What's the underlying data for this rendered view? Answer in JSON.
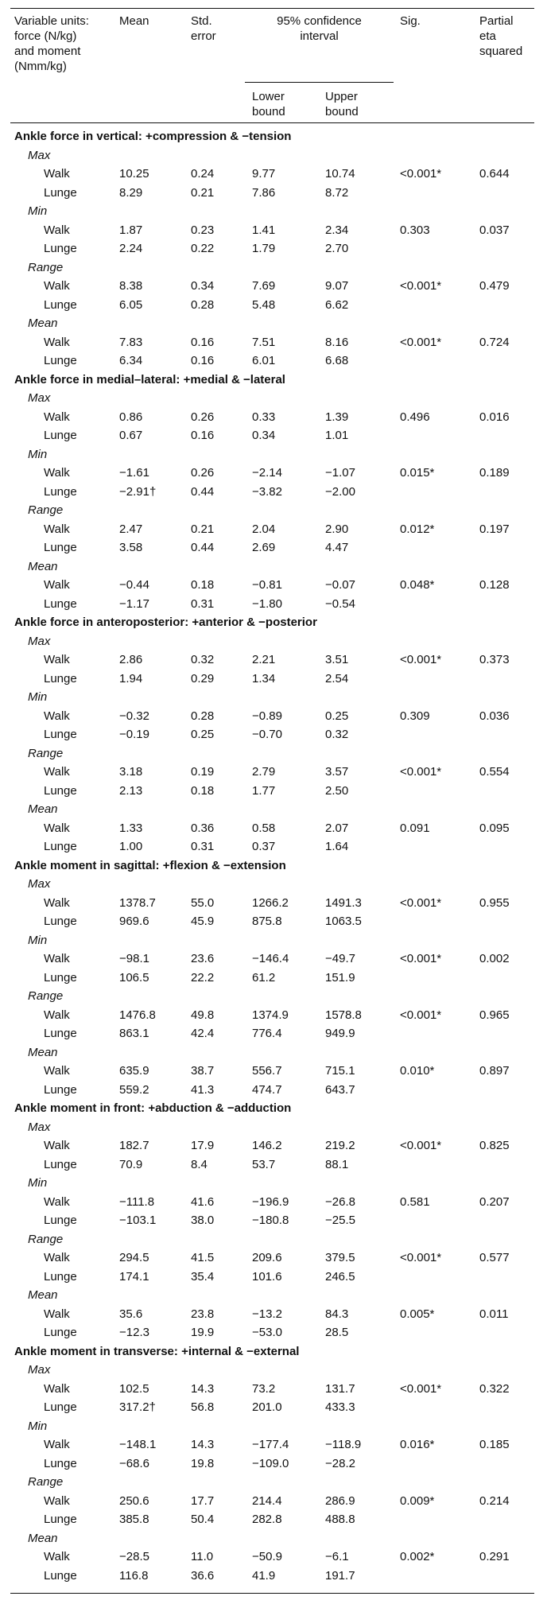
{
  "header": {
    "variable": [
      "Variable units:",
      "force (N/kg)",
      "and moment",
      "(Nmm/kg)"
    ],
    "mean": "Mean",
    "std_error": [
      "Std.",
      "error"
    ],
    "ci": [
      "95% confidence",
      "interval"
    ],
    "lower": [
      "Lower",
      "bound"
    ],
    "upper": [
      "Upper",
      "bound"
    ],
    "sig": "Sig.",
    "eta": [
      "Partial",
      "eta",
      "squared"
    ]
  },
  "rows": [
    {
      "type": "section",
      "label": "Ankle force in vertical: +compression & −tension"
    },
    {
      "type": "stat",
      "label": "Max"
    },
    {
      "type": "data",
      "label": "Walk",
      "mean": "10.25",
      "se": "0.24",
      "lb": "9.77",
      "ub": "10.74",
      "sig": "<0.001*",
      "eta": "0.644"
    },
    {
      "type": "data",
      "label": "Lunge",
      "mean": "8.29",
      "se": "0.21",
      "lb": "7.86",
      "ub": "8.72",
      "sig": "",
      "eta": ""
    },
    {
      "type": "stat",
      "label": "Min"
    },
    {
      "type": "data",
      "label": "Walk",
      "mean": "1.87",
      "se": "0.23",
      "lb": "1.41",
      "ub": "2.34",
      "sig": "0.303",
      "eta": "0.037"
    },
    {
      "type": "data",
      "label": "Lunge",
      "mean": "2.24",
      "se": "0.22",
      "lb": "1.79",
      "ub": "2.70",
      "sig": "",
      "eta": ""
    },
    {
      "type": "stat",
      "label": "Range"
    },
    {
      "type": "data",
      "label": "Walk",
      "mean": "8.38",
      "se": "0.34",
      "lb": "7.69",
      "ub": "9.07",
      "sig": "<0.001*",
      "eta": "0.479"
    },
    {
      "type": "data",
      "label": "Lunge",
      "mean": "6.05",
      "se": "0.28",
      "lb": "5.48",
      "ub": "6.62",
      "sig": "",
      "eta": ""
    },
    {
      "type": "stat",
      "label": "Mean"
    },
    {
      "type": "data",
      "label": "Walk",
      "mean": "7.83",
      "se": "0.16",
      "lb": "7.51",
      "ub": "8.16",
      "sig": "<0.001*",
      "eta": "0.724"
    },
    {
      "type": "data",
      "label": "Lunge",
      "mean": "6.34",
      "se": "0.16",
      "lb": "6.01",
      "ub": "6.68",
      "sig": "",
      "eta": ""
    },
    {
      "type": "section",
      "label": "Ankle force in medial–lateral: +medial & −lateral"
    },
    {
      "type": "stat",
      "label": "Max"
    },
    {
      "type": "data",
      "label": "Walk",
      "mean": "0.86",
      "se": "0.26",
      "lb": "0.33",
      "ub": "1.39",
      "sig": "0.496",
      "eta": "0.016"
    },
    {
      "type": "data",
      "label": "Lunge",
      "mean": "0.67",
      "se": "0.16",
      "lb": "0.34",
      "ub": "1.01",
      "sig": "",
      "eta": ""
    },
    {
      "type": "stat",
      "label": "Min"
    },
    {
      "type": "data",
      "label": "Walk",
      "mean": "−1.61",
      "se": "0.26",
      "lb": "−2.14",
      "ub": "−1.07",
      "sig": "0.015*",
      "eta": "0.189"
    },
    {
      "type": "data",
      "label": "Lunge",
      "mean": "−2.91†",
      "se": "0.44",
      "lb": "−3.82",
      "ub": "−2.00",
      "sig": "",
      "eta": ""
    },
    {
      "type": "stat",
      "label": "Range"
    },
    {
      "type": "data",
      "label": "Walk",
      "mean": "2.47",
      "se": "0.21",
      "lb": "2.04",
      "ub": "2.90",
      "sig": "0.012*",
      "eta": "0.197"
    },
    {
      "type": "data",
      "label": "Lunge",
      "mean": "3.58",
      "se": "0.44",
      "lb": "2.69",
      "ub": "4.47",
      "sig": "",
      "eta": ""
    },
    {
      "type": "stat",
      "label": "Mean"
    },
    {
      "type": "data",
      "label": "Walk",
      "mean": "−0.44",
      "se": "0.18",
      "lb": "−0.81",
      "ub": "−0.07",
      "sig": "0.048*",
      "eta": "0.128"
    },
    {
      "type": "data",
      "label": "Lunge",
      "mean": "−1.17",
      "se": "0.31",
      "lb": "−1.80",
      "ub": "−0.54",
      "sig": "",
      "eta": ""
    },
    {
      "type": "section",
      "label": "Ankle force in anteroposterior: +anterior & −posterior"
    },
    {
      "type": "stat",
      "label": "Max"
    },
    {
      "type": "data",
      "label": "Walk",
      "mean": "2.86",
      "se": "0.32",
      "lb": "2.21",
      "ub": "3.51",
      "sig": "<0.001*",
      "eta": "0.373"
    },
    {
      "type": "data",
      "label": "Lunge",
      "mean": "1.94",
      "se": "0.29",
      "lb": "1.34",
      "ub": "2.54",
      "sig": "",
      "eta": ""
    },
    {
      "type": "stat",
      "label": "Min"
    },
    {
      "type": "data",
      "label": "Walk",
      "mean": "−0.32",
      "se": "0.28",
      "lb": "−0.89",
      "ub": "0.25",
      "sig": "0.309",
      "eta": "0.036"
    },
    {
      "type": "data",
      "label": "Lunge",
      "mean": "−0.19",
      "se": "0.25",
      "lb": "−0.70",
      "ub": "0.32",
      "sig": "",
      "eta": ""
    },
    {
      "type": "stat",
      "label": "Range"
    },
    {
      "type": "data",
      "label": "Walk",
      "mean": "3.18",
      "se": "0.19",
      "lb": "2.79",
      "ub": "3.57",
      "sig": "<0.001*",
      "eta": "0.554"
    },
    {
      "type": "data",
      "label": "Lunge",
      "mean": "2.13",
      "se": "0.18",
      "lb": "1.77",
      "ub": "2.50",
      "sig": "",
      "eta": ""
    },
    {
      "type": "stat",
      "label": "Mean"
    },
    {
      "type": "data",
      "label": "Walk",
      "mean": "1.33",
      "se": "0.36",
      "lb": "0.58",
      "ub": "2.07",
      "sig": "0.091",
      "eta": "0.095"
    },
    {
      "type": "data",
      "label": "Lunge",
      "mean": "1.00",
      "se": "0.31",
      "lb": "0.37",
      "ub": "1.64",
      "sig": "",
      "eta": ""
    },
    {
      "type": "section",
      "label": "Ankle moment in sagittal: +flexion & −extension"
    },
    {
      "type": "stat",
      "label": "Max"
    },
    {
      "type": "data",
      "label": "Walk",
      "mean": "1378.7",
      "se": "55.0",
      "lb": "1266.2",
      "ub": "1491.3",
      "sig": "<0.001*",
      "eta": "0.955"
    },
    {
      "type": "data",
      "label": "Lunge",
      "mean": "969.6",
      "se": "45.9",
      "lb": "875.8",
      "ub": "1063.5",
      "sig": "",
      "eta": ""
    },
    {
      "type": "stat",
      "label": "Min"
    },
    {
      "type": "data",
      "label": "Walk",
      "mean": "−98.1",
      "se": "23.6",
      "lb": "−146.4",
      "ub": "−49.7",
      "sig": "<0.001*",
      "eta": "0.002"
    },
    {
      "type": "data",
      "label": "Lunge",
      "mean": "106.5",
      "se": "22.2",
      "lb": "61.2",
      "ub": "151.9",
      "sig": "",
      "eta": ""
    },
    {
      "type": "stat",
      "label": "Range"
    },
    {
      "type": "data",
      "label": "Walk",
      "mean": "1476.8",
      "se": "49.8",
      "lb": "1374.9",
      "ub": "1578.8",
      "sig": "<0.001*",
      "eta": "0.965"
    },
    {
      "type": "data",
      "label": "Lunge",
      "mean": "863.1",
      "se": "42.4",
      "lb": "776.4",
      "ub": "949.9",
      "sig": "",
      "eta": ""
    },
    {
      "type": "stat",
      "label": "Mean"
    },
    {
      "type": "data",
      "label": "Walk",
      "mean": "635.9",
      "se": "38.7",
      "lb": "556.7",
      "ub": "715.1",
      "sig": "0.010*",
      "eta": "0.897"
    },
    {
      "type": "data",
      "label": "Lunge",
      "mean": "559.2",
      "se": "41.3",
      "lb": "474.7",
      "ub": "643.7",
      "sig": "",
      "eta": ""
    },
    {
      "type": "section",
      "label": "Ankle moment in front: +abduction & −adduction"
    },
    {
      "type": "stat",
      "label": "Max"
    },
    {
      "type": "data",
      "label": "Walk",
      "mean": "182.7",
      "se": "17.9",
      "lb": "146.2",
      "ub": "219.2",
      "sig": "<0.001*",
      "eta": "0.825"
    },
    {
      "type": "data",
      "label": "Lunge",
      "mean": "70.9",
      "se": "8.4",
      "lb": "53.7",
      "ub": "88.1",
      "sig": "",
      "eta": ""
    },
    {
      "type": "stat",
      "label": "Min"
    },
    {
      "type": "data",
      "label": "Walk",
      "mean": "−111.8",
      "se": "41.6",
      "lb": "−196.9",
      "ub": "−26.8",
      "sig": "0.581",
      "eta": "0.207"
    },
    {
      "type": "data",
      "label": "Lunge",
      "mean": "−103.1",
      "se": "38.0",
      "lb": "−180.8",
      "ub": "−25.5",
      "sig": "",
      "eta": ""
    },
    {
      "type": "stat",
      "label": "Range"
    },
    {
      "type": "data",
      "label": "Walk",
      "mean": "294.5",
      "se": "41.5",
      "lb": "209.6",
      "ub": "379.5",
      "sig": "<0.001*",
      "eta": "0.577"
    },
    {
      "type": "data",
      "label": "Lunge",
      "mean": "174.1",
      "se": "35.4",
      "lb": "101.6",
      "ub": "246.5",
      "sig": "",
      "eta": ""
    },
    {
      "type": "stat",
      "label": "Mean"
    },
    {
      "type": "data",
      "label": "Walk",
      "mean": "35.6",
      "se": "23.8",
      "lb": "−13.2",
      "ub": "84.3",
      "sig": "0.005*",
      "eta": "0.011"
    },
    {
      "type": "data",
      "label": "Lunge",
      "mean": "−12.3",
      "se": "19.9",
      "lb": "−53.0",
      "ub": "28.5",
      "sig": "",
      "eta": ""
    },
    {
      "type": "section",
      "label": "Ankle moment in transverse: +internal & −external"
    },
    {
      "type": "stat",
      "label": "Max"
    },
    {
      "type": "data",
      "label": "Walk",
      "mean": "102.5",
      "se": "14.3",
      "lb": "73.2",
      "ub": "131.7",
      "sig": "<0.001*",
      "eta": "0.322"
    },
    {
      "type": "data",
      "label": "Lunge",
      "mean": "317.2†",
      "se": "56.8",
      "lb": "201.0",
      "ub": "433.3",
      "sig": "",
      "eta": ""
    },
    {
      "type": "stat",
      "label": "Min"
    },
    {
      "type": "data",
      "label": "Walk",
      "mean": "−148.1",
      "se": "14.3",
      "lb": "−177.4",
      "ub": "−118.9",
      "sig": "0.016*",
      "eta": "0.185"
    },
    {
      "type": "data",
      "label": "Lunge",
      "mean": "−68.6",
      "se": "19.8",
      "lb": "−109.0",
      "ub": "−28.2",
      "sig": "",
      "eta": ""
    },
    {
      "type": "stat",
      "label": "Range"
    },
    {
      "type": "data",
      "label": "Walk",
      "mean": "250.6",
      "se": "17.7",
      "lb": "214.4",
      "ub": "286.9",
      "sig": "0.009*",
      "eta": "0.214"
    },
    {
      "type": "data",
      "label": "Lunge",
      "mean": "385.8",
      "se": "50.4",
      "lb": "282.8",
      "ub": "488.8",
      "sig": "",
      "eta": ""
    },
    {
      "type": "stat",
      "label": "Mean"
    },
    {
      "type": "data",
      "label": "Walk",
      "mean": "−28.5",
      "se": "11.0",
      "lb": "−50.9",
      "ub": "−6.1",
      "sig": "0.002*",
      "eta": "0.291"
    },
    {
      "type": "data",
      "label": "Lunge",
      "mean": "116.8",
      "se": "36.6",
      "lb": "41.9",
      "ub": "191.7",
      "sig": "",
      "eta": ""
    }
  ]
}
